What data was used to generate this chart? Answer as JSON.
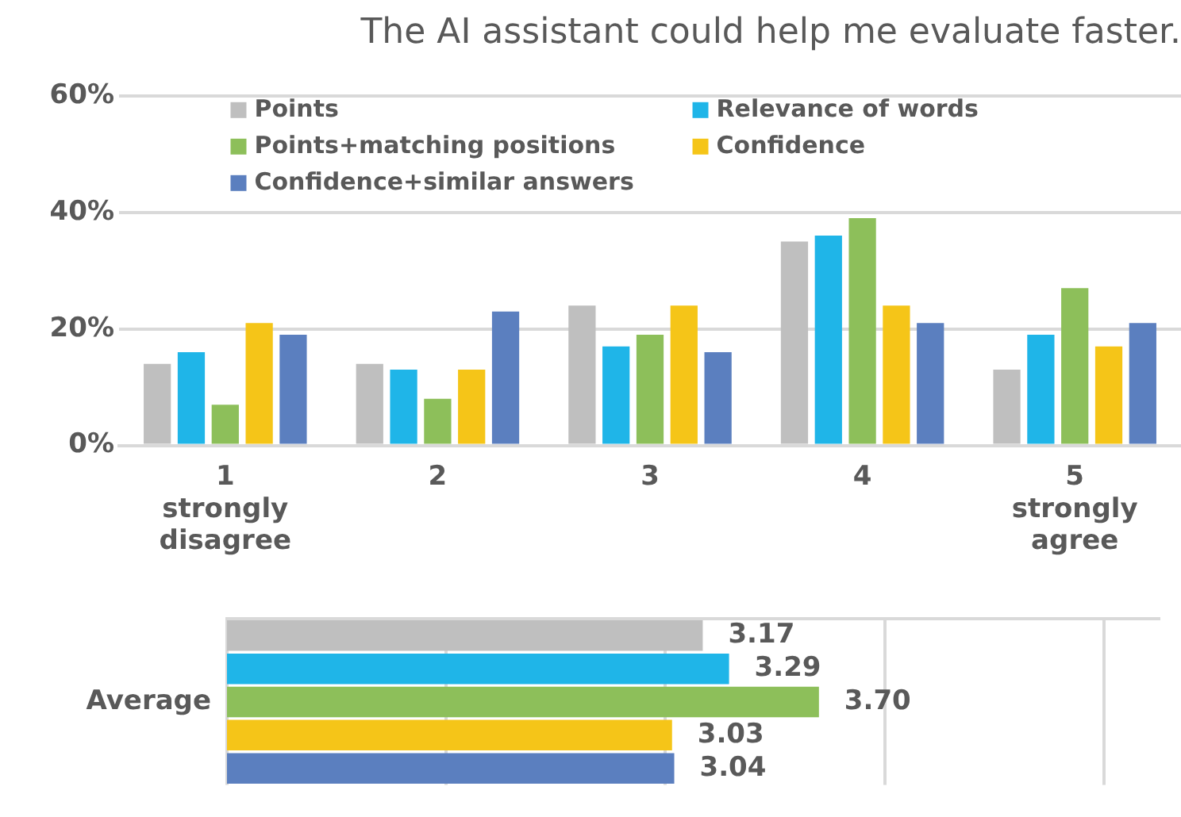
{
  "chart_data": [
    {
      "type": "bar",
      "title": "The AI assistant could help me evaluate faster.",
      "categories": [
        "1\nstrongly\ndisagree",
        "2",
        "3",
        "4",
        "5\nstrongly\nagree"
      ],
      "series": [
        {
          "name": "Points",
          "color": "#bfbfbf",
          "values": [
            14,
            14,
            24,
            35,
            13
          ]
        },
        {
          "name": "Relevance of words",
          "color": "#1fb5e8",
          "values": [
            16,
            13,
            17,
            36,
            19
          ]
        },
        {
          "name": "Points+matching positions",
          "color": "#8dbf5a",
          "values": [
            7,
            8,
            19,
            39,
            27
          ]
        },
        {
          "name": "Confidence",
          "color": "#f5c518",
          "values": [
            21,
            13,
            24,
            24,
            17
          ]
        },
        {
          "name": "Confidence+similar answers",
          "color": "#5b7fbf",
          "values": [
            19,
            23,
            16,
            21,
            21
          ]
        }
      ],
      "ylim": [
        0,
        60
      ],
      "yticks": [
        {
          "value": 0,
          "label": "0%"
        },
        {
          "value": 20,
          "label": "20%"
        },
        {
          "value": 40,
          "label": "40%"
        },
        {
          "value": 60,
          "label": "60%"
        }
      ],
      "grid": "y",
      "legend": "top left"
    },
    {
      "type": "bar",
      "orientation": "horizontal",
      "categories": [
        null,
        null,
        "Average",
        null,
        null
      ],
      "series": [
        {
          "colors": [
            "#bfbfbf",
            "#1fb5e8",
            "#8dbf5a",
            "#f5c518",
            "#5b7fbf"
          ],
          "values": [
            3.17,
            3.29,
            3.7,
            3.03,
            3.04
          ],
          "value_labels": [
            "3.17",
            "3.29",
            "3.70",
            "3.03",
            "3.04"
          ]
        }
      ],
      "xlim": [
        1,
        5.25
      ],
      "xticks": [
        {
          "value": 1,
          "label": null
        },
        {
          "value": 2,
          "label": null
        },
        {
          "value": 3,
          "label": null
        },
        {
          "value": 4,
          "label": null
        },
        {
          "value": 5,
          "label": null
        }
      ],
      "grid": "x",
      "tick_labels": "y"
    }
  ]
}
